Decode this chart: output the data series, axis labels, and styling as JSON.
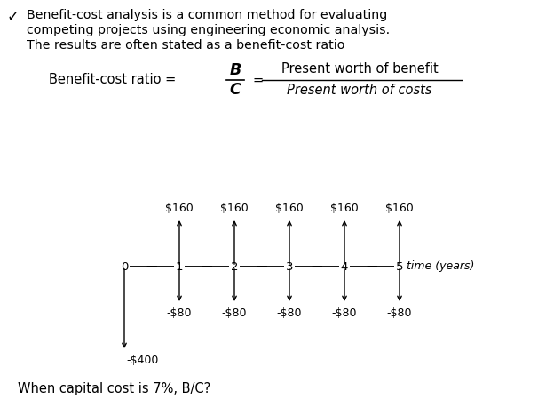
{
  "background_color": "#ffffff",
  "fig_width": 6.06,
  "fig_height": 4.58,
  "dpi": 100,
  "checkmark": "✓",
  "line1": "Benefit-cost analysis is a common method for evaluating",
  "line2": "competing projects using engineering economic analysis.",
  "line3": "The results are often stated as a benefit-cost ratio",
  "formula_lhs": "Benefit-cost ratio = ",
  "formula_B": "B",
  "formula_C": "C",
  "formula_pw_num": "Present worth of benefit",
  "formula_pw_den": "Present worth of costs",
  "benefit_label": "$160",
  "cost_label": "-$80",
  "initial_cost_label": "-$400",
  "time_label": "time (years)",
  "question": "When capital cost is 7%, B/C?",
  "text_color": "#000000",
  "header_fontsize": 10.2,
  "formula_fontsize": 10.5,
  "diagram_fontsize": 9.0,
  "question_fontsize": 10.5,
  "checkmark_fontsize": 12
}
